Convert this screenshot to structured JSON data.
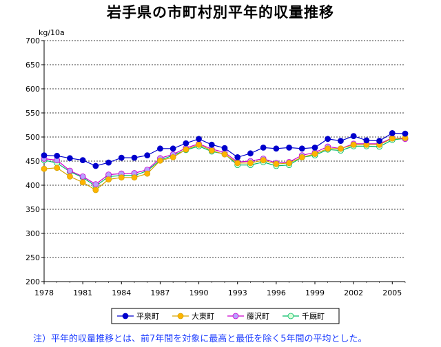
{
  "chart_data": {
    "type": "line",
    "title": "岩手県の市町村別平年的収量推移",
    "ylabel": "kg/10a",
    "xlabel": "",
    "ylim": [
      200,
      700
    ],
    "yticks": [
      200,
      250,
      300,
      350,
      400,
      450,
      500,
      550,
      600,
      650,
      700
    ],
    "xlim": [
      1978,
      2006
    ],
    "xticks": [
      1978,
      1981,
      1984,
      1987,
      1990,
      1993,
      1996,
      1999,
      2002,
      2005
    ],
    "x": [
      1978,
      1979,
      1980,
      1981,
      1982,
      1983,
      1984,
      1985,
      1986,
      1987,
      1988,
      1989,
      1990,
      1991,
      1992,
      1993,
      1994,
      1995,
      1996,
      1997,
      1998,
      1999,
      2000,
      2001,
      2002,
      2003,
      2004,
      2005,
      2006
    ],
    "series": [
      {
        "name": "平泉町",
        "color": "#0000cc",
        "marker": "#0000cc",
        "values": [
          462,
          461,
          456,
          452,
          440,
          447,
          457,
          457,
          462,
          476,
          476,
          487,
          496,
          484,
          477,
          458,
          466,
          478,
          476,
          478,
          476,
          478,
          496,
          492,
          502,
          493,
          492,
          508,
          507
        ]
      },
      {
        "name": "大東町",
        "color": "#d6a400",
        "marker": "#ffb400",
        "values": [
          434,
          436,
          418,
          406,
          390,
          412,
          416,
          416,
          424,
          451,
          458,
          474,
          484,
          472,
          464,
          446,
          446,
          452,
          444,
          446,
          458,
          465,
          476,
          476,
          484,
          484,
          484,
          497,
          498
        ]
      },
      {
        "name": "藤沢町",
        "color": "#cc00cc",
        "marker": "#b8a0ff",
        "values": [
          455,
          452,
          430,
          418,
          402,
          422,
          424,
          425,
          432,
          456,
          464,
          477,
          486,
          475,
          468,
          448,
          450,
          455,
          446,
          448,
          462,
          468,
          480,
          476,
          486,
          486,
          486,
          498,
          496
        ]
      },
      {
        "name": "千厩町",
        "color": "#00bb66",
        "marker": "#d8ffd8",
        "values": [
          452,
          446,
          428,
          416,
          398,
          418,
          420,
          420,
          430,
          452,
          462,
          473,
          481,
          470,
          465,
          442,
          442,
          448,
          440,
          442,
          458,
          462,
          474,
          472,
          481,
          481,
          480,
          494,
          497
        ]
      }
    ],
    "legend_position": "bottom",
    "grid": true
  },
  "footnote": "注）平年的収量推移とは、前7年間を対象に最高と最低を除く5年間の平均とした。"
}
